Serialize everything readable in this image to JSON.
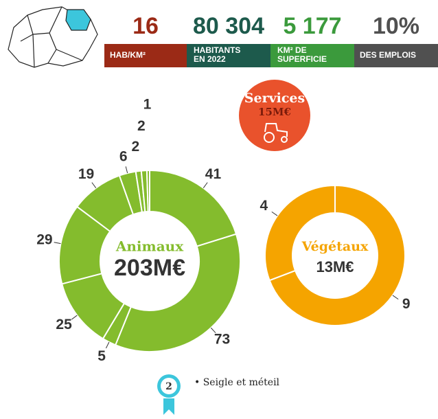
{
  "stats": [
    {
      "value": "16",
      "label": "HAB/KM²",
      "color": "#9b2a16"
    },
    {
      "value": "80 304",
      "label": "HABITANTS EN 2022",
      "color": "#1d5a4c"
    },
    {
      "value": "5 177",
      "label": "KM² DE SUPERFICIE",
      "color": "#3b9a3c"
    },
    {
      "value": "10%",
      "label": "DES EMPLOIS",
      "color": "#505050"
    }
  ],
  "services": {
    "title": "Services",
    "value": "15M€",
    "color": "#e9522c"
  },
  "chart_data": [
    {
      "type": "donut",
      "title": "Animaux",
      "subtitle": "203M€",
      "color": "#84bc2d",
      "values": [
        41,
        73,
        5,
        25,
        29,
        19,
        6,
        2,
        2,
        1
      ]
    },
    {
      "type": "donut",
      "title": "Végétaux",
      "subtitle": "13M€",
      "color": "#f5a400",
      "values": [
        9,
        4
      ]
    }
  ],
  "footnote": {
    "badge": "2",
    "text": "• Seigle et méteil"
  }
}
